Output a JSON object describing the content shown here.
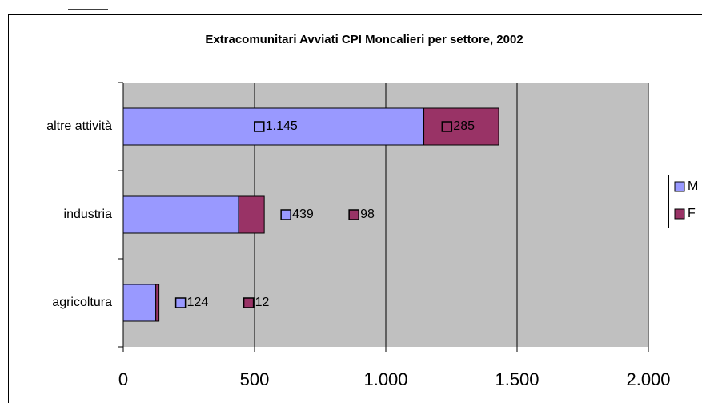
{
  "chart_data": {
    "type": "bar",
    "orientation": "horizontal",
    "stacked": true,
    "title": "Extracomunitari Avviati CPI Moncalieri per settore, 2002",
    "categories": [
      "agricoltura",
      "industria",
      "altre attività"
    ],
    "series": [
      {
        "name": "M",
        "color": "#9999ff",
        "values": [
          124,
          439,
          1145
        ],
        "value_labels": [
          "124",
          "439",
          "1.145"
        ]
      },
      {
        "name": "F",
        "color": "#993366",
        "values": [
          12,
          98,
          285
        ],
        "value_labels": [
          "12",
          "98",
          "285"
        ]
      }
    ],
    "xlim": [
      0,
      2000
    ],
    "xticks": [
      0,
      500,
      {
        "value": 1000,
        "label": "1.000"
      },
      {
        "value": 1500,
        "label": "1.500"
      },
      {
        "value": 2000,
        "label": "2.000"
      }
    ],
    "grid": true,
    "legend": "right"
  }
}
